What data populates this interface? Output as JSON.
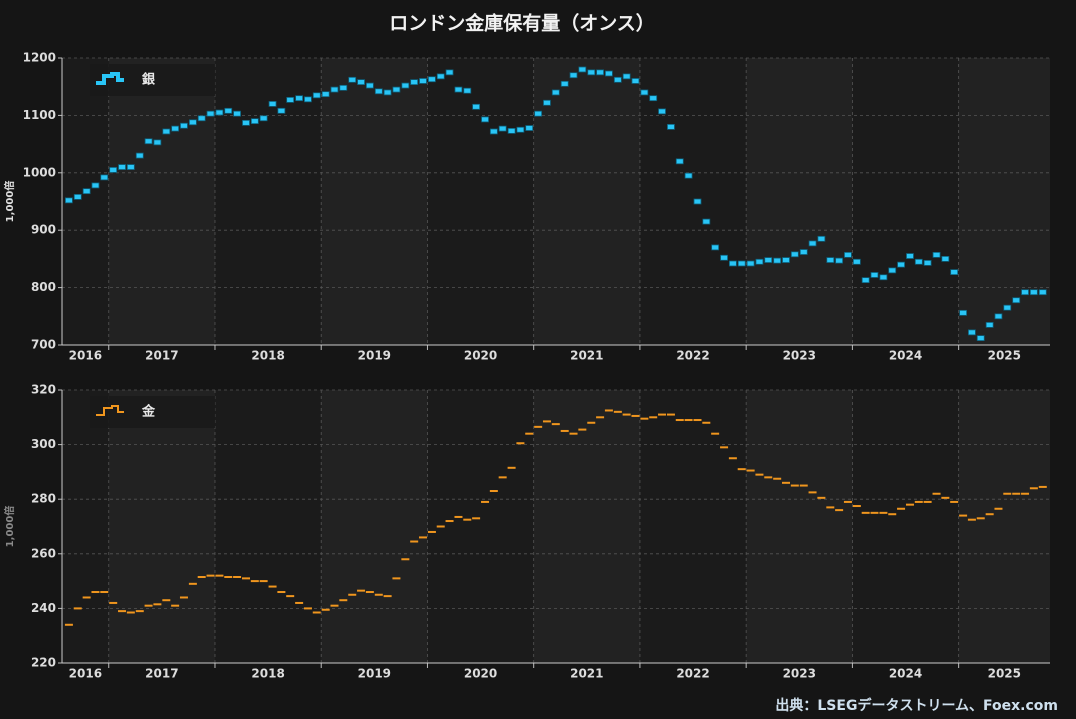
{
  "title": "ロンドン金庫保有量（オンス）",
  "source": "出典：LSEGデータストリーム、Foex.com",
  "chart_data": [
    {
      "type": "scatter",
      "ylabel": "1,000倍",
      "marker": "box-x",
      "legend": "upper left",
      "grid": true,
      "xlim": [
        2016.56,
        2025.86
      ],
      "xticks": [
        {
          "value": 2016.78,
          "label": "2016"
        },
        {
          "value": 2017.5,
          "label": "2017"
        },
        {
          "value": 2018.5,
          "label": "2018"
        },
        {
          "value": 2019.5,
          "label": "2019"
        },
        {
          "value": 2020.5,
          "label": "2020"
        },
        {
          "value": 2021.5,
          "label": "2021"
        },
        {
          "value": 2022.5,
          "label": "2022"
        },
        {
          "value": 2023.5,
          "label": "2023"
        },
        {
          "value": 2024.5,
          "label": "2024"
        },
        {
          "value": 2025.43,
          "label": "2025"
        }
      ],
      "xgrid": [
        2017,
        2018,
        2019,
        2020,
        2021,
        2022,
        2023,
        2024,
        2025
      ],
      "ylim": [
        700,
        1200
      ],
      "yticks": [
        700,
        800,
        900,
        1000,
        1100,
        1200
      ],
      "x": [
        2016.625,
        2016.708,
        2016.792,
        2016.875,
        2016.958,
        2017.042,
        2017.125,
        2017.208,
        2017.292,
        2017.375,
        2017.458,
        2017.542,
        2017.625,
        2017.708,
        2017.792,
        2017.875,
        2017.958,
        2018.042,
        2018.125,
        2018.208,
        2018.292,
        2018.375,
        2018.458,
        2018.542,
        2018.625,
        2018.708,
        2018.792,
        2018.875,
        2018.958,
        2019.042,
        2019.125,
        2019.208,
        2019.292,
        2019.375,
        2019.458,
        2019.542,
        2019.625,
        2019.708,
        2019.792,
        2019.875,
        2019.958,
        2020.042,
        2020.125,
        2020.208,
        2020.292,
        2020.375,
        2020.458,
        2020.542,
        2020.625,
        2020.708,
        2020.792,
        2020.875,
        2020.958,
        2021.042,
        2021.125,
        2021.208,
        2021.292,
        2021.375,
        2021.458,
        2021.542,
        2021.625,
        2021.708,
        2021.792,
        2021.875,
        2021.958,
        2022.042,
        2022.125,
        2022.208,
        2022.292,
        2022.375,
        2022.458,
        2022.542,
        2022.625,
        2022.708,
        2022.792,
        2022.875,
        2022.958,
        2023.042,
        2023.125,
        2023.208,
        2023.292,
        2023.375,
        2023.458,
        2023.542,
        2023.625,
        2023.708,
        2023.792,
        2023.875,
        2023.958,
        2024.042,
        2024.125,
        2024.208,
        2024.292,
        2024.375,
        2024.458,
        2024.542,
        2024.625,
        2024.708,
        2024.792,
        2024.875,
        2024.958,
        2025.042,
        2025.125,
        2025.208,
        2025.292,
        2025.375,
        2025.458,
        2025.542,
        2025.625,
        2025.708,
        2025.792
      ],
      "series": [
        {
          "name": "銀",
          "color": "#29c5f6",
          "values": [
            952,
            958,
            968,
            978,
            992,
            1005,
            1010,
            1010,
            1030,
            1055,
            1053,
            1072,
            1077,
            1082,
            1088,
            1095,
            1103,
            1105,
            1108,
            1103,
            1087,
            1090,
            1095,
            1120,
            1108,
            1127,
            1130,
            1128,
            1135,
            1137,
            1145,
            1148,
            1162,
            1158,
            1152,
            1142,
            1140,
            1145,
            1152,
            1158,
            1160,
            1163,
            1168,
            1175,
            1145,
            1143,
            1115,
            1093,
            1072,
            1077,
            1073,
            1075,
            1078,
            1103,
            1122,
            1140,
            1155,
            1170,
            1180,
            1175,
            1175,
            1173,
            1162,
            1168,
            1160,
            1140,
            1130,
            1107,
            1080,
            1020,
            995,
            950,
            915,
            870,
            852,
            842,
            842,
            842,
            845,
            848,
            847,
            848,
            858,
            862,
            877,
            885,
            848,
            847,
            857,
            845,
            813,
            822,
            818,
            830,
            840,
            855,
            845,
            843,
            857,
            850,
            827,
            756,
            722,
            712,
            735,
            750,
            765,
            778,
            792,
            792,
            792
          ]
        }
      ]
    },
    {
      "type": "scatter",
      "ylabel": "1,000倍",
      "marker": "dash",
      "legend": "upper left",
      "grid": true,
      "xlim": [
        2016.56,
        2025.86
      ],
      "xticks": [
        {
          "value": 2016.78,
          "label": "2016"
        },
        {
          "value": 2017.5,
          "label": "2017"
        },
        {
          "value": 2018.5,
          "label": "2018"
        },
        {
          "value": 2019.5,
          "label": "2019"
        },
        {
          "value": 2020.5,
          "label": "2020"
        },
        {
          "value": 2021.5,
          "label": "2021"
        },
        {
          "value": 2022.5,
          "label": "2022"
        },
        {
          "value": 2023.5,
          "label": "2023"
        },
        {
          "value": 2024.5,
          "label": "2024"
        },
        {
          "value": 2025.43,
          "label": "2025"
        }
      ],
      "xgrid": [
        2017,
        2018,
        2019,
        2020,
        2021,
        2022,
        2023,
        2024,
        2025
      ],
      "ylim": [
        220,
        320
      ],
      "yticks": [
        220,
        240,
        260,
        280,
        300,
        320
      ],
      "x": [
        2016.625,
        2016.708,
        2016.792,
        2016.875,
        2016.958,
        2017.042,
        2017.125,
        2017.208,
        2017.292,
        2017.375,
        2017.458,
        2017.542,
        2017.625,
        2017.708,
        2017.792,
        2017.875,
        2017.958,
        2018.042,
        2018.125,
        2018.208,
        2018.292,
        2018.375,
        2018.458,
        2018.542,
        2018.625,
        2018.708,
        2018.792,
        2018.875,
        2018.958,
        2019.042,
        2019.125,
        2019.208,
        2019.292,
        2019.375,
        2019.458,
        2019.542,
        2019.625,
        2019.708,
        2019.792,
        2019.875,
        2019.958,
        2020.042,
        2020.125,
        2020.208,
        2020.292,
        2020.375,
        2020.458,
        2020.542,
        2020.625,
        2020.708,
        2020.792,
        2020.875,
        2020.958,
        2021.042,
        2021.125,
        2021.208,
        2021.292,
        2021.375,
        2021.458,
        2021.542,
        2021.625,
        2021.708,
        2021.792,
        2021.875,
        2021.958,
        2022.042,
        2022.125,
        2022.208,
        2022.292,
        2022.375,
        2022.458,
        2022.542,
        2022.625,
        2022.708,
        2022.792,
        2022.875,
        2022.958,
        2023.042,
        2023.125,
        2023.208,
        2023.292,
        2023.375,
        2023.458,
        2023.542,
        2023.625,
        2023.708,
        2023.792,
        2023.875,
        2023.958,
        2024.042,
        2024.125,
        2024.208,
        2024.292,
        2024.375,
        2024.458,
        2024.542,
        2024.625,
        2024.708,
        2024.792,
        2024.875,
        2024.958,
        2025.042,
        2025.125,
        2025.208,
        2025.292,
        2025.375,
        2025.458,
        2025.542,
        2025.625,
        2025.708,
        2025.792
      ],
      "series": [
        {
          "name": "金",
          "color": "#f0961e",
          "values": [
            234,
            240,
            244,
            246,
            246,
            242,
            239,
            238.5,
            239,
            241,
            241.5,
            243,
            241,
            244,
            249,
            251.5,
            252,
            252,
            251.5,
            251.5,
            251,
            250,
            250,
            248,
            246,
            244.5,
            242,
            240,
            238.5,
            239.5,
            241,
            243,
            245,
            246.5,
            246,
            245,
            244.5,
            251,
            258,
            264.5,
            266,
            268,
            270,
            272,
            273.5,
            272.5,
            273,
            279,
            283,
            288,
            291.5,
            300.5,
            304,
            306.5,
            308.5,
            307.5,
            305,
            304,
            305.5,
            308,
            310,
            312.5,
            312,
            311,
            310.5,
            309.5,
            310,
            311,
            311,
            309,
            309,
            309,
            308,
            304,
            299,
            295,
            291,
            290.5,
            289,
            288,
            287.5,
            286,
            285,
            285,
            282.5,
            280.5,
            277,
            276,
            279,
            277.5,
            275,
            275,
            275,
            274.5,
            276.5,
            278,
            279,
            279,
            282,
            280.5,
            279,
            274,
            272.5,
            273,
            274.5,
            276.5,
            282,
            282,
            282,
            284,
            284.5
          ]
        }
      ]
    }
  ]
}
